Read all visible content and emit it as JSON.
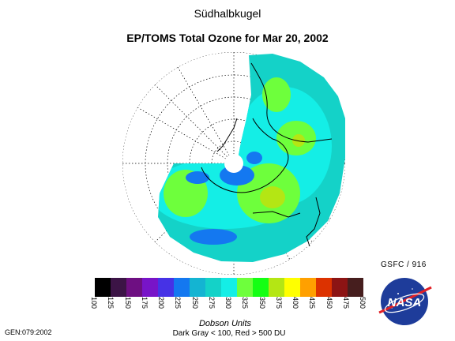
{
  "heading": "Südhalbkugel",
  "title": "EP/TOMS Total Ozone for Mar 20, 2002",
  "credit": "GSFC / 916",
  "gen_label": "GEN:079:2002",
  "units_label": "Dobson Units",
  "footnote": "Dark Gray < 100, Red > 500 DU",
  "logo_text": "NASA",
  "color_scale": {
    "ticks": [
      "100",
      "125",
      "150",
      "175",
      "200",
      "225",
      "250",
      "275",
      "300",
      "325",
      "350",
      "375",
      "400",
      "425",
      "450",
      "475",
      "500"
    ],
    "colors": [
      "#000000",
      "#3c1446",
      "#6e0f82",
      "#7814c8",
      "#4632e6",
      "#1478f0",
      "#14b4d2",
      "#14d2c8",
      "#14eee6",
      "#6eff3c",
      "#14ff14",
      "#b4e614",
      "#ffff00",
      "#ffa000",
      "#dc3200",
      "#8c1414",
      "#461e1e"
    ]
  },
  "map": {
    "projection": "south-polar-stereographic",
    "background_color": "#ffffff",
    "ozone_levels": {
      "dominant": "#14d2c8",
      "low_region": "#1478f0",
      "mid_region": "#14eee6",
      "high_region": "#6eff3c",
      "peak_region": "#b4e614"
    }
  }
}
